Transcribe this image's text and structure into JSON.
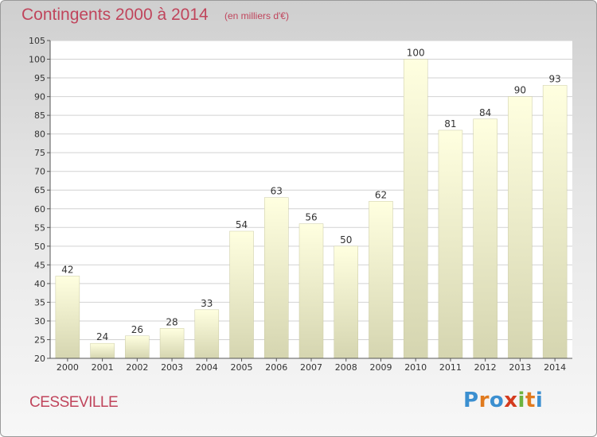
{
  "header": {
    "title": "Contingents 2000 à 2014",
    "subtitle": "(en milliers d'€)"
  },
  "footer": {
    "place": "CESSEVILLE",
    "logo_letters": [
      {
        "char": "P",
        "color": "#3b8fd0"
      },
      {
        "char": "r",
        "color": "#e07a1e"
      },
      {
        "char": "o",
        "color": "#3b8fd0"
      },
      {
        "char": "x",
        "color": "#d43b1e"
      },
      {
        "char": "i",
        "color": "#6db33f"
      },
      {
        "char": "t",
        "color": "#e07a1e"
      },
      {
        "char": "i",
        "color": "#3b8fd0"
      }
    ]
  },
  "chart_data": {
    "type": "bar",
    "categories": [
      "2000",
      "2001",
      "2002",
      "2003",
      "2004",
      "2005",
      "2006",
      "2007",
      "2008",
      "2009",
      "2010",
      "2011",
      "2012",
      "2013",
      "2014"
    ],
    "values": [
      42,
      24,
      26,
      28,
      33,
      54,
      63,
      56,
      50,
      62,
      100,
      81,
      84,
      90,
      93
    ],
    "title": "Contingents 2000 à 2014",
    "subtitle": "(en milliers d'€)",
    "xlabel": "",
    "ylabel": "",
    "ylim": [
      20,
      105
    ],
    "yticks": [
      20,
      25,
      30,
      35,
      40,
      45,
      50,
      55,
      60,
      65,
      70,
      75,
      80,
      85,
      90,
      95,
      100,
      105
    ],
    "grid": true,
    "legend": "none",
    "colors": {
      "bar_top": "#ffffe0",
      "bar_bottom": "#d5d5b0",
      "bar_edge": "#c9c9a2",
      "grid": "#d2d2d2",
      "plot_bg": "#ffffff",
      "title": "#c0455c"
    }
  }
}
